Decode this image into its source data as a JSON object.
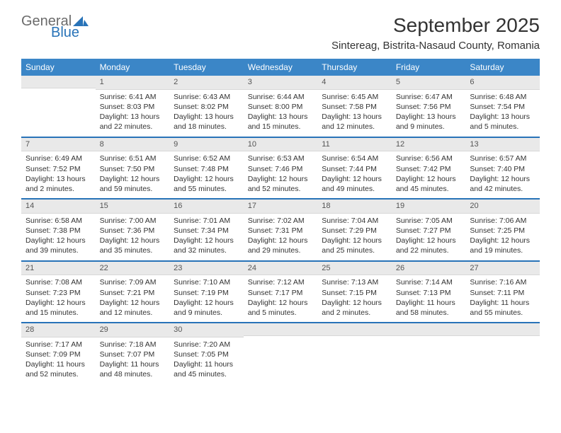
{
  "brand": {
    "word1": "General",
    "word2": "Blue"
  },
  "title": "September 2025",
  "location": "Sintereag, Bistrita-Nasaud County, Romania",
  "colors": {
    "header_bg": "#3b86c7",
    "accent": "#2873b8",
    "gray_row": "#e9e9e9",
    "text": "#333333",
    "logo_gray": "#6b6b6b"
  },
  "daynames": [
    "Sunday",
    "Monday",
    "Tuesday",
    "Wednesday",
    "Thursday",
    "Friday",
    "Saturday"
  ],
  "weeks": [
    [
      {
        "n": "",
        "sunrise": "",
        "sunset": "",
        "daylight": ""
      },
      {
        "n": "1",
        "sunrise": "Sunrise: 6:41 AM",
        "sunset": "Sunset: 8:03 PM",
        "daylight": "Daylight: 13 hours and 22 minutes."
      },
      {
        "n": "2",
        "sunrise": "Sunrise: 6:43 AM",
        "sunset": "Sunset: 8:02 PM",
        "daylight": "Daylight: 13 hours and 18 minutes."
      },
      {
        "n": "3",
        "sunrise": "Sunrise: 6:44 AM",
        "sunset": "Sunset: 8:00 PM",
        "daylight": "Daylight: 13 hours and 15 minutes."
      },
      {
        "n": "4",
        "sunrise": "Sunrise: 6:45 AM",
        "sunset": "Sunset: 7:58 PM",
        "daylight": "Daylight: 13 hours and 12 minutes."
      },
      {
        "n": "5",
        "sunrise": "Sunrise: 6:47 AM",
        "sunset": "Sunset: 7:56 PM",
        "daylight": "Daylight: 13 hours and 9 minutes."
      },
      {
        "n": "6",
        "sunrise": "Sunrise: 6:48 AM",
        "sunset": "Sunset: 7:54 PM",
        "daylight": "Daylight: 13 hours and 5 minutes."
      }
    ],
    [
      {
        "n": "7",
        "sunrise": "Sunrise: 6:49 AM",
        "sunset": "Sunset: 7:52 PM",
        "daylight": "Daylight: 13 hours and 2 minutes."
      },
      {
        "n": "8",
        "sunrise": "Sunrise: 6:51 AM",
        "sunset": "Sunset: 7:50 PM",
        "daylight": "Daylight: 12 hours and 59 minutes."
      },
      {
        "n": "9",
        "sunrise": "Sunrise: 6:52 AM",
        "sunset": "Sunset: 7:48 PM",
        "daylight": "Daylight: 12 hours and 55 minutes."
      },
      {
        "n": "10",
        "sunrise": "Sunrise: 6:53 AM",
        "sunset": "Sunset: 7:46 PM",
        "daylight": "Daylight: 12 hours and 52 minutes."
      },
      {
        "n": "11",
        "sunrise": "Sunrise: 6:54 AM",
        "sunset": "Sunset: 7:44 PM",
        "daylight": "Daylight: 12 hours and 49 minutes."
      },
      {
        "n": "12",
        "sunrise": "Sunrise: 6:56 AM",
        "sunset": "Sunset: 7:42 PM",
        "daylight": "Daylight: 12 hours and 45 minutes."
      },
      {
        "n": "13",
        "sunrise": "Sunrise: 6:57 AM",
        "sunset": "Sunset: 7:40 PM",
        "daylight": "Daylight: 12 hours and 42 minutes."
      }
    ],
    [
      {
        "n": "14",
        "sunrise": "Sunrise: 6:58 AM",
        "sunset": "Sunset: 7:38 PM",
        "daylight": "Daylight: 12 hours and 39 minutes."
      },
      {
        "n": "15",
        "sunrise": "Sunrise: 7:00 AM",
        "sunset": "Sunset: 7:36 PM",
        "daylight": "Daylight: 12 hours and 35 minutes."
      },
      {
        "n": "16",
        "sunrise": "Sunrise: 7:01 AM",
        "sunset": "Sunset: 7:34 PM",
        "daylight": "Daylight: 12 hours and 32 minutes."
      },
      {
        "n": "17",
        "sunrise": "Sunrise: 7:02 AM",
        "sunset": "Sunset: 7:31 PM",
        "daylight": "Daylight: 12 hours and 29 minutes."
      },
      {
        "n": "18",
        "sunrise": "Sunrise: 7:04 AM",
        "sunset": "Sunset: 7:29 PM",
        "daylight": "Daylight: 12 hours and 25 minutes."
      },
      {
        "n": "19",
        "sunrise": "Sunrise: 7:05 AM",
        "sunset": "Sunset: 7:27 PM",
        "daylight": "Daylight: 12 hours and 22 minutes."
      },
      {
        "n": "20",
        "sunrise": "Sunrise: 7:06 AM",
        "sunset": "Sunset: 7:25 PM",
        "daylight": "Daylight: 12 hours and 19 minutes."
      }
    ],
    [
      {
        "n": "21",
        "sunrise": "Sunrise: 7:08 AM",
        "sunset": "Sunset: 7:23 PM",
        "daylight": "Daylight: 12 hours and 15 minutes."
      },
      {
        "n": "22",
        "sunrise": "Sunrise: 7:09 AM",
        "sunset": "Sunset: 7:21 PM",
        "daylight": "Daylight: 12 hours and 12 minutes."
      },
      {
        "n": "23",
        "sunrise": "Sunrise: 7:10 AM",
        "sunset": "Sunset: 7:19 PM",
        "daylight": "Daylight: 12 hours and 9 minutes."
      },
      {
        "n": "24",
        "sunrise": "Sunrise: 7:12 AM",
        "sunset": "Sunset: 7:17 PM",
        "daylight": "Daylight: 12 hours and 5 minutes."
      },
      {
        "n": "25",
        "sunrise": "Sunrise: 7:13 AM",
        "sunset": "Sunset: 7:15 PM",
        "daylight": "Daylight: 12 hours and 2 minutes."
      },
      {
        "n": "26",
        "sunrise": "Sunrise: 7:14 AM",
        "sunset": "Sunset: 7:13 PM",
        "daylight": "Daylight: 11 hours and 58 minutes."
      },
      {
        "n": "27",
        "sunrise": "Sunrise: 7:16 AM",
        "sunset": "Sunset: 7:11 PM",
        "daylight": "Daylight: 11 hours and 55 minutes."
      }
    ],
    [
      {
        "n": "28",
        "sunrise": "Sunrise: 7:17 AM",
        "sunset": "Sunset: 7:09 PM",
        "daylight": "Daylight: 11 hours and 52 minutes."
      },
      {
        "n": "29",
        "sunrise": "Sunrise: 7:18 AM",
        "sunset": "Sunset: 7:07 PM",
        "daylight": "Daylight: 11 hours and 48 minutes."
      },
      {
        "n": "30",
        "sunrise": "Sunrise: 7:20 AM",
        "sunset": "Sunset: 7:05 PM",
        "daylight": "Daylight: 11 hours and 45 minutes."
      },
      {
        "n": "",
        "sunrise": "",
        "sunset": "",
        "daylight": ""
      },
      {
        "n": "",
        "sunrise": "",
        "sunset": "",
        "daylight": ""
      },
      {
        "n": "",
        "sunrise": "",
        "sunset": "",
        "daylight": ""
      },
      {
        "n": "",
        "sunrise": "",
        "sunset": "",
        "daylight": ""
      }
    ]
  ]
}
